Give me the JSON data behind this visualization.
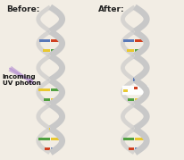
{
  "title_before": "Before:",
  "title_after": "After:",
  "label_arrow": "Incoming\nUV photon",
  "background_color": "#f2ede4",
  "helix_color": "#c8c8c8",
  "helix_edge_color": "#a0a0a0",
  "base_colors_left": [
    "#d04020",
    "#50a040",
    "#e8c830",
    "#5878b8",
    "#d04020",
    "#50a040",
    "#e8c830",
    "#5878b8",
    "#d04020",
    "#50a040",
    "#e8c830",
    "#5878b8",
    "#d04020",
    "#50a040",
    "#e8c830"
  ],
  "base_colors_right": [
    "#5878b8",
    "#e8c830",
    "#50a040",
    "#d04020",
    "#5878b8",
    "#e8c830",
    "#50a040",
    "#d04020",
    "#5878b8",
    "#e8c830",
    "#50a040",
    "#d04020",
    "#5878b8",
    "#e8c830",
    "#50a040"
  ],
  "figure_width": 2.07,
  "figure_height": 1.79,
  "dpi": 100,
  "title_fontsize": 6.5,
  "label_fontsize": 5.2,
  "arrow_color": "#c0a0d5"
}
